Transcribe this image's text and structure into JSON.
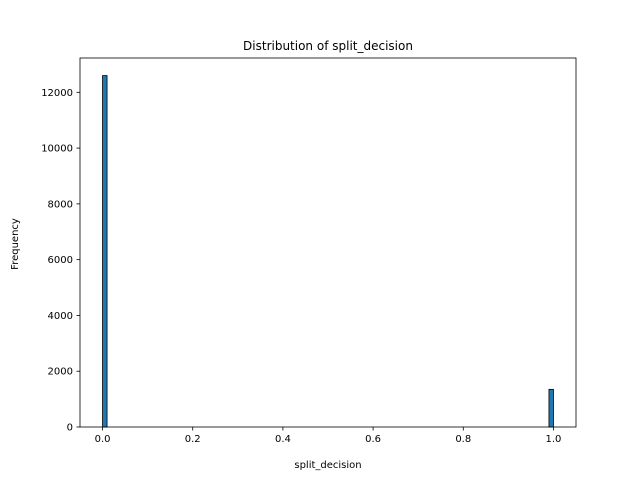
{
  "chart_data": {
    "type": "bar",
    "title": "Distribution of split_decision",
    "xlabel": "split_decision",
    "ylabel": "Frequency",
    "xlim": [
      -0.05,
      1.05
    ],
    "ylim": [
      0,
      13230
    ],
    "xticks": [
      0.0,
      0.2,
      0.4,
      0.6,
      0.8,
      1.0
    ],
    "xtick_labels": [
      "0.0",
      "0.2",
      "0.4",
      "0.6",
      "0.8",
      "1.0"
    ],
    "yticks": [
      0,
      2000,
      4000,
      6000,
      8000,
      10000,
      12000
    ],
    "ytick_labels": [
      "0",
      "2000",
      "4000",
      "6000",
      "8000",
      "10000",
      "12000"
    ],
    "bin_width": 0.01,
    "bins": [
      {
        "start": 0.0,
        "end": 0.01,
        "value": 12600
      },
      {
        "start": 0.99,
        "end": 1.0,
        "value": 1350
      }
    ],
    "grid": false,
    "bar_color": "#1f77b4",
    "edge_color": "#000000"
  }
}
